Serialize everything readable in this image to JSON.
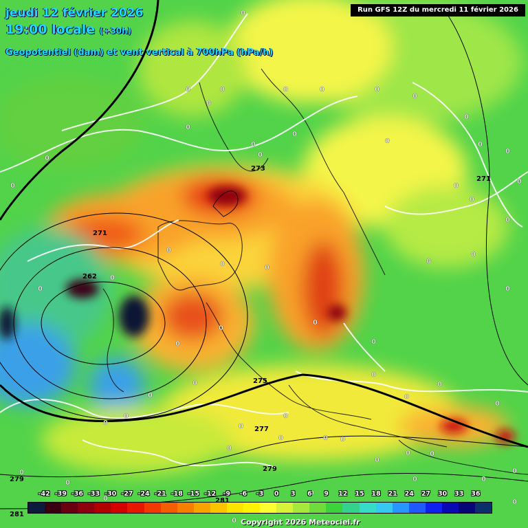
{
  "header": {
    "date": "jeudi 12 février 2026",
    "time": "19:00 locale",
    "lead": "(+30h)",
    "parameter": "Geopotentiel (dam) et vent vertical à 700hPa (hPa/h)"
  },
  "run_info": "Run GFS 12Z du mercredi 11 février 2026",
  "copyright": "Copyright 2026 Meteociel.fr",
  "legend": {
    "ticks": [
      "-42",
      "-39",
      "-36",
      "-33",
      "-30",
      "-27",
      "-24",
      "-21",
      "-18",
      "-15",
      "-12",
      "-9",
      "-6",
      "-3",
      "0",
      "3",
      "6",
      "9",
      "12",
      "15",
      "18",
      "21",
      "24",
      "27",
      "30",
      "33",
      "36"
    ],
    "colors": [
      "#0b1a3d",
      "#3a0010",
      "#6a0010",
      "#8e000c",
      "#b00000",
      "#d40000",
      "#e81800",
      "#f23a00",
      "#f55e00",
      "#f77f00",
      "#f9a200",
      "#fbc400",
      "#fde300",
      "#fff200",
      "#ffff30",
      "#d8f23a",
      "#a8e83a",
      "#6edc3a",
      "#3cd23c",
      "#34d28c",
      "#36dcc8",
      "#36c8f0",
      "#2896ff",
      "#1e5aff",
      "#1020f0",
      "#0a0ab4",
      "#060678",
      "#0a2f6a"
    ]
  },
  "map": {
    "geopotential_labels": [
      "262",
      "271",
      "273",
      "275",
      "277",
      "279",
      "279",
      "281",
      "271",
      "281"
    ],
    "zero_labels_count": 60
  }
}
